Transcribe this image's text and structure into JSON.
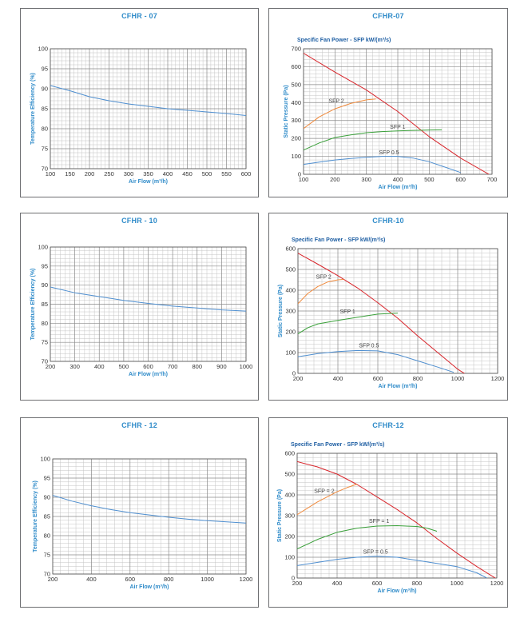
{
  "chart_data": [
    {
      "id": "eff07",
      "type": "line",
      "title": "CFHR - 07",
      "xlabel": "Air Flow (m³/h)",
      "ylabel": "Temperature Efficiency (%)",
      "xlim": [
        100,
        600
      ],
      "ylim": [
        70,
        100
      ],
      "xticks": [
        100,
        150,
        200,
        250,
        300,
        350,
        400,
        450,
        500,
        550,
        600
      ],
      "yticks": [
        70,
        75,
        80,
        85,
        90,
        95,
        100
      ],
      "grid": true,
      "series": [
        {
          "color": "#4f8fd0",
          "points": [
            [
              100,
              90.8
            ],
            [
              150,
              89.5
            ],
            [
              200,
              88.0
            ],
            [
              250,
              87.0
            ],
            [
              300,
              86.2
            ],
            [
              350,
              85.6
            ],
            [
              400,
              85.0
            ],
            [
              450,
              84.6
            ],
            [
              500,
              84.2
            ],
            [
              550,
              83.8
            ],
            [
              600,
              83.3
            ]
          ]
        }
      ]
    },
    {
      "id": "sfp07",
      "type": "line",
      "title": "CFHR-07",
      "subtitle": "Specific Fan Power - SFP kW/(m³/s)",
      "xlabel": "Air Flow (m³/h)",
      "ylabel": "Static Pressure (Pa)",
      "xlim": [
        100,
        700
      ],
      "ylim": [
        0,
        700
      ],
      "xticks": [
        100,
        200,
        300,
        400,
        500,
        600,
        700
      ],
      "yticks": [
        0,
        100,
        200,
        300,
        400,
        500,
        600,
        700
      ],
      "grid": true,
      "series": [
        {
          "color": "#d9252b",
          "points": [
            [
              100,
              675
            ],
            [
              200,
              570
            ],
            [
              300,
              470
            ],
            [
              400,
              350
            ],
            [
              500,
              210
            ],
            [
              600,
              90
            ],
            [
              690,
              0
            ]
          ]
        },
        {
          "name": "SFP 2",
          "color": "#f08a3c",
          "points": [
            [
              100,
              255
            ],
            [
              150,
              320
            ],
            [
              200,
              365
            ],
            [
              250,
              395
            ],
            [
              300,
              415
            ],
            [
              330,
              420
            ]
          ],
          "label_at": [
            180,
            400
          ]
        },
        {
          "name": "SFP 1",
          "color": "#3aa03a",
          "points": [
            [
              100,
              135
            ],
            [
              150,
              175
            ],
            [
              200,
              205
            ],
            [
              250,
              220
            ],
            [
              300,
              232
            ],
            [
              350,
              238
            ],
            [
              400,
              242
            ],
            [
              450,
              245
            ],
            [
              500,
              247
            ],
            [
              540,
              248
            ]
          ],
          "label_at": [
            375,
            255
          ]
        },
        {
          "name": "SFP 0.5",
          "color": "#4f8fd0",
          "points": [
            [
              100,
              55
            ],
            [
              150,
              68
            ],
            [
              200,
              80
            ],
            [
              250,
              88
            ],
            [
              300,
              95
            ],
            [
              350,
              100
            ],
            [
              400,
              100
            ],
            [
              450,
              90
            ],
            [
              500,
              70
            ],
            [
              550,
              40
            ],
            [
              600,
              10
            ]
          ],
          "label_at": [
            340,
            112
          ]
        }
      ]
    },
    {
      "id": "eff10",
      "type": "line",
      "title": "CFHR - 10",
      "xlabel": "Air Flow (m³/h)",
      "ylabel": "Temperature Efficiency (%)",
      "xlim": [
        200,
        1000
      ],
      "ylim": [
        70,
        100
      ],
      "xticks": [
        200,
        300,
        400,
        500,
        600,
        700,
        800,
        900,
        1000
      ],
      "yticks": [
        70,
        75,
        80,
        85,
        90,
        95,
        100
      ],
      "grid": true,
      "series": [
        {
          "color": "#4f8fd0",
          "points": [
            [
              200,
              89.5
            ],
            [
              300,
              88.0
            ],
            [
              400,
              87.0
            ],
            [
              500,
              86.0
            ],
            [
              600,
              85.2
            ],
            [
              700,
              84.5
            ],
            [
              800,
              84.0
            ],
            [
              900,
              83.5
            ],
            [
              1000,
              83.2
            ]
          ]
        }
      ]
    },
    {
      "id": "sfp10",
      "type": "line",
      "title": "CFHR-10",
      "subtitle": "Specific Fan Power - SFP kW/(m³/s)",
      "xlabel": "Air Flow (m³/h)",
      "ylabel": "Static Pressure (Pa)",
      "xlim": [
        200,
        1200
      ],
      "ylim": [
        0,
        600
      ],
      "xticks": [
        200,
        400,
        600,
        800,
        1000,
        1200
      ],
      "yticks": [
        0,
        100,
        200,
        300,
        400,
        500,
        600
      ],
      "grid": true,
      "series": [
        {
          "color": "#d9252b",
          "points": [
            [
              200,
              578
            ],
            [
              300,
              525
            ],
            [
              400,
              470
            ],
            [
              500,
              410
            ],
            [
              600,
              340
            ],
            [
              700,
              265
            ],
            [
              800,
              180
            ],
            [
              900,
              100
            ],
            [
              1000,
              20
            ],
            [
              1050,
              -10
            ]
          ]
        },
        {
          "name": "SFP 2",
          "color": "#f08a3c",
          "points": [
            [
              200,
              335
            ],
            [
              250,
              385
            ],
            [
              300,
              418
            ],
            [
              350,
              440
            ],
            [
              400,
              450
            ],
            [
              430,
              452
            ]
          ],
          "label_at": [
            290,
            455
          ]
        },
        {
          "name": "SFP 1",
          "color": "#3aa03a",
          "points": [
            [
              200,
              190
            ],
            [
              250,
              220
            ],
            [
              300,
              238
            ],
            [
              400,
              255
            ],
            [
              500,
              270
            ],
            [
              600,
              285
            ],
            [
              700,
              290
            ]
          ],
          "label_at": [
            410,
            288
          ]
        },
        {
          "name": "SFP 0.5",
          "color": "#4f8fd0",
          "points": [
            [
              200,
              80
            ],
            [
              300,
              95
            ],
            [
              400,
              105
            ],
            [
              500,
              110
            ],
            [
              600,
              108
            ],
            [
              700,
              90
            ],
            [
              800,
              60
            ],
            [
              900,
              30
            ],
            [
              980,
              5
            ]
          ],
          "label_at": [
            505,
            125
          ]
        }
      ]
    },
    {
      "id": "eff12",
      "type": "line",
      "title": "CFHR - 12",
      "xlabel": "Air Flow (m³/h)",
      "ylabel": "Temperature Efficiency (%)",
      "xlim": [
        200,
        1200
      ],
      "ylim": [
        70,
        100
      ],
      "xticks": [
        200,
        400,
        600,
        800,
        1000,
        1200
      ],
      "yticks": [
        70,
        75,
        80,
        85,
        90,
        95,
        100
      ],
      "grid": true,
      "series": [
        {
          "color": "#4f8fd0",
          "points": [
            [
              200,
              90.5
            ],
            [
              300,
              89.0
            ],
            [
              400,
              87.8
            ],
            [
              500,
              86.8
            ],
            [
              600,
              86.0
            ],
            [
              700,
              85.4
            ],
            [
              800,
              84.8
            ],
            [
              900,
              84.3
            ],
            [
              1000,
              83.9
            ],
            [
              1100,
              83.6
            ],
            [
              1200,
              83.3
            ]
          ]
        }
      ]
    },
    {
      "id": "sfp12",
      "type": "line",
      "title": "CFHR-12",
      "subtitle": "Specific Fan Power - SFP kW/(m³/s)",
      "xlabel": "Air Flow (m³/h)",
      "ylabel": "Static Pressure (Pa)",
      "xlim": [
        200,
        1200
      ],
      "ylim": [
        0,
        600
      ],
      "xticks": [
        200,
        400,
        600,
        800,
        1000,
        1200
      ],
      "yticks": [
        0,
        100,
        200,
        300,
        400,
        500,
        600
      ],
      "grid": true,
      "series": [
        {
          "color": "#d9252b",
          "points": [
            [
              200,
              560
            ],
            [
              300,
              535
            ],
            [
              400,
              500
            ],
            [
              500,
              450
            ],
            [
              600,
              390
            ],
            [
              700,
              330
            ],
            [
              800,
              265
            ],
            [
              900,
              190
            ],
            [
              1000,
              120
            ],
            [
              1100,
              55
            ],
            [
              1200,
              -5
            ]
          ]
        },
        {
          "name": "SFP = 2",
          "color": "#f08a3c",
          "points": [
            [
              200,
              305
            ],
            [
              250,
              335
            ],
            [
              300,
              365
            ],
            [
              350,
              390
            ],
            [
              400,
              415
            ],
            [
              450,
              435
            ],
            [
              500,
              452
            ]
          ],
          "label_at": [
            285,
            410
          ]
        },
        {
          "name": "SFP = 1",
          "color": "#3aa03a",
          "points": [
            [
              200,
              140
            ],
            [
              300,
              185
            ],
            [
              400,
              220
            ],
            [
              500,
              240
            ],
            [
              600,
              250
            ],
            [
              700,
              252
            ],
            [
              800,
              248
            ],
            [
              850,
              240
            ],
            [
              900,
              225
            ]
          ],
          "label_at": [
            560,
            265
          ]
        },
        {
          "name": "SFP = 0.5",
          "color": "#4f8fd0",
          "points": [
            [
              200,
              60
            ],
            [
              300,
              75
            ],
            [
              400,
              90
            ],
            [
              500,
              100
            ],
            [
              600,
              105
            ],
            [
              700,
              100
            ],
            [
              800,
              85
            ],
            [
              900,
              70
            ],
            [
              1000,
              55
            ],
            [
              1100,
              25
            ],
            [
              1150,
              0
            ]
          ],
          "label_at": [
            530,
            118
          ]
        }
      ]
    }
  ]
}
